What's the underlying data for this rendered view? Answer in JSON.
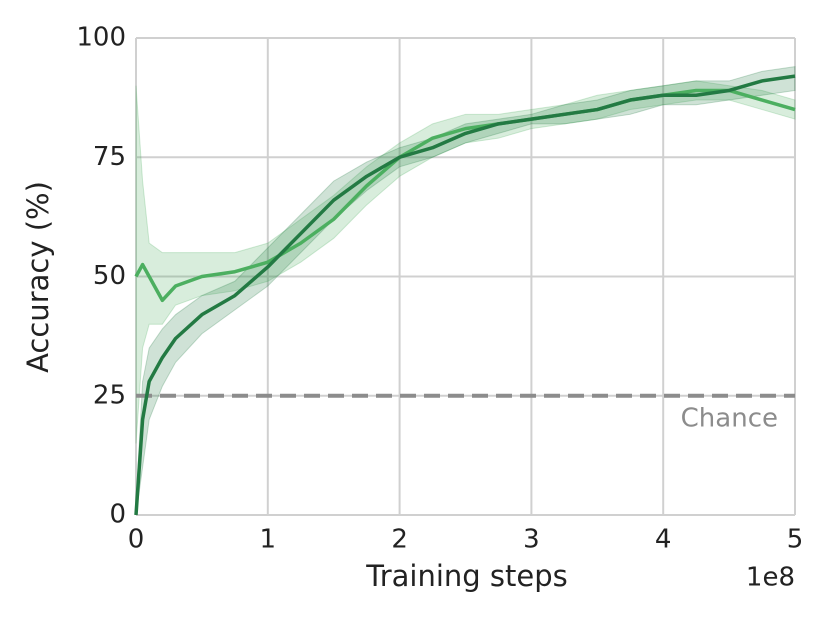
{
  "chart_data": {
    "type": "line",
    "xlabel": "Training steps",
    "ylabel": "Accuracy (%)",
    "x_offset_label": "1e8",
    "x": [
      0,
      0.05,
      0.1,
      0.2,
      0.3,
      0.5,
      0.75,
      1,
      1.25,
      1.5,
      1.75,
      2,
      2.25,
      2.5,
      2.75,
      3,
      3.25,
      3.5,
      3.75,
      4,
      4.25,
      4.5,
      4.75,
      5
    ],
    "series": [
      {
        "color": "#4caf60",
        "values": [
          50,
          52.5,
          50,
          45,
          48,
          50,
          51,
          53,
          57,
          62,
          69,
          75,
          79,
          81,
          82,
          83,
          84,
          85,
          87,
          88,
          89,
          89,
          87,
          85
        ],
        "lower": [
          15,
          35,
          40,
          40,
          44,
          46,
          47,
          49,
          53,
          58,
          65,
          71,
          75,
          78,
          79,
          81,
          82,
          83,
          85,
          86,
          87,
          87,
          85,
          83
        ],
        "upper": [
          90,
          70,
          57,
          55,
          55,
          55,
          55,
          57,
          62,
          67,
          73,
          78,
          82,
          84,
          84,
          85,
          86,
          88,
          89,
          90,
          91,
          90,
          89,
          87
        ]
      },
      {
        "color": "#237a43",
        "values": [
          0,
          20,
          28,
          33,
          37,
          42,
          46,
          52,
          59,
          66,
          71,
          75,
          77,
          80,
          82,
          83,
          84,
          85,
          87,
          88,
          88,
          89,
          91,
          92
        ],
        "lower": [
          0,
          10,
          20,
          27,
          32,
          38,
          43,
          48,
          55,
          62,
          68,
          73,
          75,
          78,
          80,
          82,
          82,
          83,
          84,
          86,
          86,
          87,
          88,
          89
        ],
        "upper": [
          2,
          28,
          35,
          39,
          42,
          46,
          49,
          56,
          63,
          70,
          74,
          77,
          79,
          82,
          83,
          84,
          86,
          87,
          89,
          90,
          91,
          91,
          93,
          94
        ]
      }
    ],
    "reference_line": {
      "value": 25,
      "label": "Chance",
      "color": "#8c8c8c"
    },
    "xlim": [
      0,
      5
    ],
    "xticks": [
      0,
      1,
      2,
      3,
      4,
      5
    ],
    "ylim": [
      0,
      100
    ],
    "yticks": [
      0,
      25,
      50,
      75,
      100
    ],
    "grid": true
  }
}
